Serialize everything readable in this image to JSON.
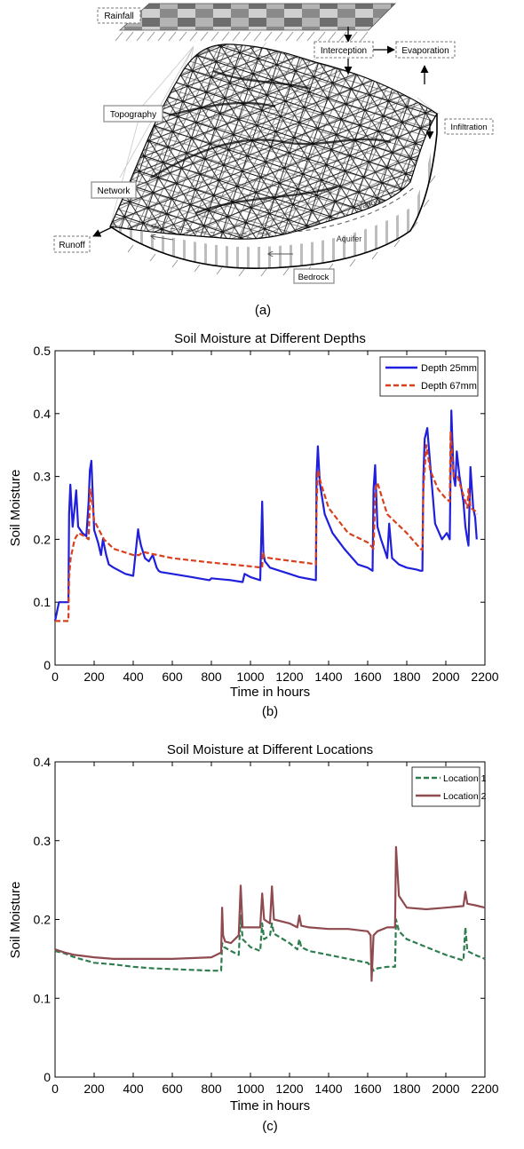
{
  "diagram": {
    "caption": "(a)",
    "labels": {
      "rainfall": "Rainfall",
      "interception": "Interception",
      "evaporation": "Evaporation",
      "topography": "Topography",
      "infiltration": "Infiltration",
      "network": "Network",
      "vadose": "Vadose",
      "aquifer": "Aquifer",
      "runoff": "Runoff",
      "bedrock": "Bedrock"
    }
  },
  "colors": {
    "depth25": "#1f1fdc",
    "depth67": "#d9411e",
    "location1": "#2e7d4f",
    "location2": "#8e4a4f"
  },
  "chart_data": [
    {
      "type": "line",
      "title": "Soil Moisture at Different Depths",
      "xlabel": "Time in hours",
      "ylabel": "Soil Moisture",
      "caption": "(b)",
      "xlim": [
        0,
        2200
      ],
      "ylim": [
        0,
        0.5
      ],
      "xticks": [
        0,
        200,
        400,
        600,
        800,
        1000,
        1200,
        1400,
        1600,
        1800,
        2000,
        2200
      ],
      "yticks": [
        0,
        0.1,
        0.2,
        0.3,
        0.4,
        0.5
      ],
      "ytick_labels": [
        "0",
        "0.1",
        "0.2",
        "0.3",
        "0.4",
        "0.5"
      ],
      "grid": false,
      "legend": "top-right",
      "series": [
        {
          "name": "Depth 25mm",
          "style": "solid",
          "x": [
            0,
            20,
            40,
            68,
            72,
            78,
            90,
            100,
            108,
            118,
            140,
            160,
            172,
            178,
            186,
            200,
            220,
            235,
            245,
            262,
            275,
            300,
            330,
            360,
            400,
            425,
            430,
            440,
            460,
            480,
            500,
            520,
            530,
            540,
            600,
            700,
            790,
            800,
            900,
            960,
            970,
            1000,
            1050,
            1060,
            1066,
            1074,
            1100,
            1150,
            1200,
            1250,
            1300,
            1335,
            1338,
            1345,
            1355,
            1380,
            1420,
            1480,
            1550,
            1600,
            1625,
            1630,
            1638,
            1650,
            1668,
            1690,
            1700,
            1710,
            1725,
            1760,
            1800,
            1850,
            1870,
            1880,
            1885,
            1892,
            1905,
            1925,
            1945,
            1980,
            2005,
            2020,
            2028,
            2040,
            2048,
            2056,
            2070,
            2090,
            2100,
            2110,
            2116,
            2126,
            2140,
            2150,
            2158
          ],
          "y": [
            0.07,
            0.1,
            0.1,
            0.1,
            0.24,
            0.287,
            0.22,
            0.25,
            0.278,
            0.22,
            0.21,
            0.205,
            0.26,
            0.31,
            0.325,
            0.215,
            0.195,
            0.175,
            0.2,
            0.175,
            0.16,
            0.155,
            0.15,
            0.145,
            0.142,
            0.216,
            0.205,
            0.19,
            0.17,
            0.165,
            0.175,
            0.155,
            0.15,
            0.148,
            0.145,
            0.14,
            0.135,
            0.138,
            0.135,
            0.132,
            0.145,
            0.14,
            0.135,
            0.26,
            0.18,
            0.165,
            0.155,
            0.15,
            0.145,
            0.14,
            0.137,
            0.135,
            0.3,
            0.348,
            0.29,
            0.24,
            0.21,
            0.185,
            0.16,
            0.155,
            0.15,
            0.28,
            0.318,
            0.22,
            0.2,
            0.18,
            0.17,
            0.225,
            0.17,
            0.16,
            0.155,
            0.152,
            0.15,
            0.15,
            0.3,
            0.36,
            0.377,
            0.3,
            0.225,
            0.2,
            0.21,
            0.2,
            0.405,
            0.3,
            0.285,
            0.34,
            0.3,
            0.26,
            0.22,
            0.2,
            0.19,
            0.315,
            0.25,
            0.235,
            0.2
          ]
        },
        {
          "name": "Depth 67mm",
          "style": "dashed",
          "x": [
            0,
            68,
            72,
            80,
            100,
            120,
            150,
            172,
            180,
            186,
            200,
            250,
            300,
            400,
            430,
            450,
            480,
            600,
            800,
            1000,
            1060,
            1064,
            1070,
            1100,
            1200,
            1300,
            1335,
            1338,
            1345,
            1360,
            1400,
            1500,
            1600,
            1630,
            1640,
            1650,
            1700,
            1800,
            1870,
            1880,
            1885,
            1900,
            1920,
            1960,
            2000,
            2020,
            2024,
            2040,
            2060,
            2080,
            2100,
            2110,
            2116,
            2126,
            2150,
            2160
          ],
          "y": [
            0.07,
            0.07,
            0.14,
            0.17,
            0.2,
            0.21,
            0.205,
            0.2,
            0.28,
            0.27,
            0.23,
            0.2,
            0.185,
            0.175,
            0.175,
            0.18,
            0.178,
            0.17,
            0.163,
            0.157,
            0.155,
            0.18,
            0.172,
            0.17,
            0.166,
            0.162,
            0.16,
            0.25,
            0.31,
            0.29,
            0.25,
            0.21,
            0.195,
            0.185,
            0.28,
            0.29,
            0.24,
            0.21,
            0.185,
            0.183,
            0.28,
            0.35,
            0.31,
            0.28,
            0.265,
            0.26,
            0.37,
            0.3,
            0.3,
            0.28,
            0.26,
            0.25,
            0.28,
            0.25,
            0.245,
            0.24
          ]
        }
      ]
    },
    {
      "type": "line",
      "title": "Soil Moisture at Different Locations",
      "xlabel": "Time in hours",
      "ylabel": "Soil Moisture",
      "caption": "(c)",
      "xlim": [
        0,
        2200
      ],
      "ylim": [
        0,
        0.4
      ],
      "xticks": [
        0,
        200,
        400,
        600,
        800,
        1000,
        1200,
        1400,
        1600,
        1800,
        2000,
        2200
      ],
      "yticks": [
        0,
        0.1,
        0.2,
        0.3,
        0.4
      ],
      "ytick_labels": [
        "0",
        "0.1",
        "0.2",
        "0.3",
        "0.4"
      ],
      "grid": false,
      "legend": "top-right",
      "series": [
        {
          "name": "Location 1",
          "style": "dashed",
          "x": [
            0,
            50,
            100,
            200,
            300,
            400,
            500,
            600,
            700,
            800,
            850,
            855,
            865,
            900,
            940,
            950,
            960,
            1000,
            1050,
            1060,
            1070,
            1100,
            1110,
            1120,
            1200,
            1240,
            1250,
            1260,
            1300,
            1400,
            1500,
            1600,
            1620,
            1630,
            1650,
            1700,
            1740,
            1745,
            1760,
            1800,
            1900,
            2000,
            2090,
            2100,
            2110,
            2150,
            2200
          ],
          "y": [
            0.16,
            0.157,
            0.152,
            0.145,
            0.143,
            0.14,
            0.138,
            0.137,
            0.136,
            0.135,
            0.135,
            0.17,
            0.165,
            0.16,
            0.155,
            0.205,
            0.175,
            0.165,
            0.16,
            0.195,
            0.175,
            0.18,
            0.195,
            0.182,
            0.17,
            0.162,
            0.175,
            0.165,
            0.16,
            0.155,
            0.15,
            0.145,
            0.14,
            0.135,
            0.138,
            0.14,
            0.14,
            0.2,
            0.185,
            0.175,
            0.165,
            0.155,
            0.148,
            0.19,
            0.16,
            0.155,
            0.15
          ]
        },
        {
          "name": "Location 2",
          "style": "solid",
          "x": [
            0,
            50,
            100,
            200,
            300,
            400,
            500,
            600,
            700,
            800,
            850,
            855,
            860,
            870,
            900,
            940,
            950,
            960,
            1000,
            1050,
            1060,
            1070,
            1100,
            1110,
            1120,
            1200,
            1240,
            1250,
            1260,
            1300,
            1400,
            1500,
            1600,
            1615,
            1620,
            1630,
            1650,
            1700,
            1740,
            1745,
            1760,
            1800,
            1900,
            2000,
            2090,
            2100,
            2110,
            2150,
            2200
          ],
          "y": [
            0.162,
            0.158,
            0.155,
            0.152,
            0.15,
            0.15,
            0.15,
            0.15,
            0.151,
            0.152,
            0.158,
            0.215,
            0.18,
            0.172,
            0.17,
            0.18,
            0.243,
            0.19,
            0.19,
            0.19,
            0.233,
            0.2,
            0.195,
            0.242,
            0.2,
            0.195,
            0.19,
            0.205,
            0.192,
            0.19,
            0.188,
            0.188,
            0.185,
            0.18,
            0.122,
            0.18,
            0.185,
            0.19,
            0.19,
            0.292,
            0.23,
            0.215,
            0.213,
            0.215,
            0.217,
            0.235,
            0.22,
            0.218,
            0.215
          ]
        }
      ]
    }
  ]
}
